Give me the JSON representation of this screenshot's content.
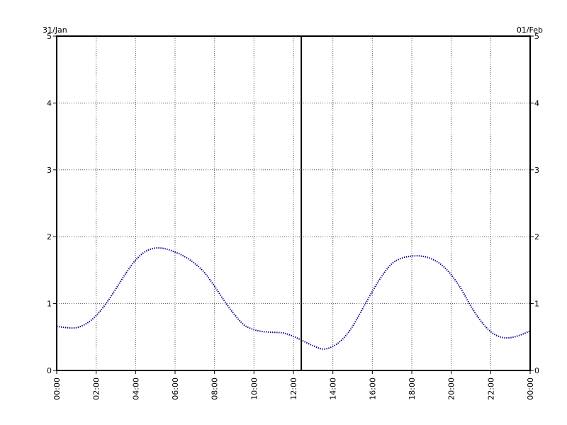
{
  "chart_data": {
    "type": "line",
    "title": "",
    "xlabel": "",
    "ylabel": "",
    "date_labels": {
      "left": "31/Jan",
      "right": "01/Feb"
    },
    "x_range_hours": [
      0,
      24
    ],
    "x_ticks": [
      "00:00",
      "02:00",
      "04:00",
      "06:00",
      "08:00",
      "10:00",
      "12:00",
      "14:00",
      "16:00",
      "18:00",
      "20:00",
      "22:00",
      "00:00"
    ],
    "ylim": [
      0,
      5
    ],
    "y_ticks": [
      0,
      1,
      2,
      3,
      4,
      5
    ],
    "grid": true,
    "marker_hour": 12.4,
    "series": [
      {
        "color": "#00008b",
        "style": "dotted",
        "x": [
          0,
          0.5,
          1,
          1.5,
          2,
          2.5,
          3,
          3.5,
          4,
          4.5,
          5,
          5.5,
          6,
          6.5,
          7,
          7.5,
          8,
          8.5,
          9,
          9.5,
          10,
          10.5,
          11,
          11.5,
          12,
          12.5,
          13,
          13.5,
          14,
          14.5,
          15,
          15.5,
          16,
          16.5,
          17,
          17.5,
          18,
          18.5,
          19,
          19.5,
          20,
          20.5,
          21,
          21.5,
          22,
          22.5,
          23,
          23.5,
          24
        ],
        "values": [
          0.66,
          0.64,
          0.64,
          0.7,
          0.82,
          1.0,
          1.22,
          1.45,
          1.65,
          1.78,
          1.83,
          1.82,
          1.77,
          1.7,
          1.6,
          1.46,
          1.26,
          1.04,
          0.84,
          0.68,
          0.61,
          0.58,
          0.57,
          0.56,
          0.51,
          0.44,
          0.37,
          0.32,
          0.36,
          0.47,
          0.66,
          0.92,
          1.18,
          1.42,
          1.6,
          1.68,
          1.71,
          1.71,
          1.67,
          1.58,
          1.43,
          1.22,
          0.96,
          0.74,
          0.58,
          0.5,
          0.49,
          0.53,
          0.59
        ]
      }
    ]
  }
}
